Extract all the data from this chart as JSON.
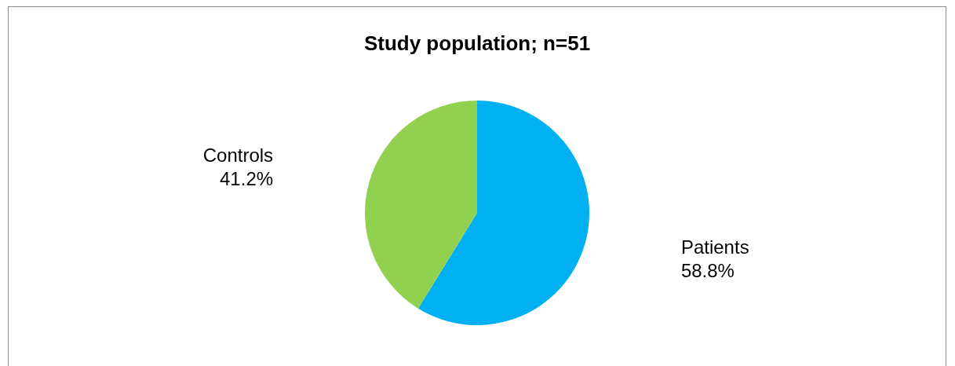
{
  "chart_data": {
    "type": "pie",
    "title": "Study population; n=51",
    "categories": [
      "Patients",
      "Controls"
    ],
    "values": [
      58.8,
      41.2
    ],
    "colors": [
      "#00b0f0",
      "#92d050"
    ],
    "value_labels": [
      "58.8%",
      "41.2%"
    ],
    "legend": false
  }
}
